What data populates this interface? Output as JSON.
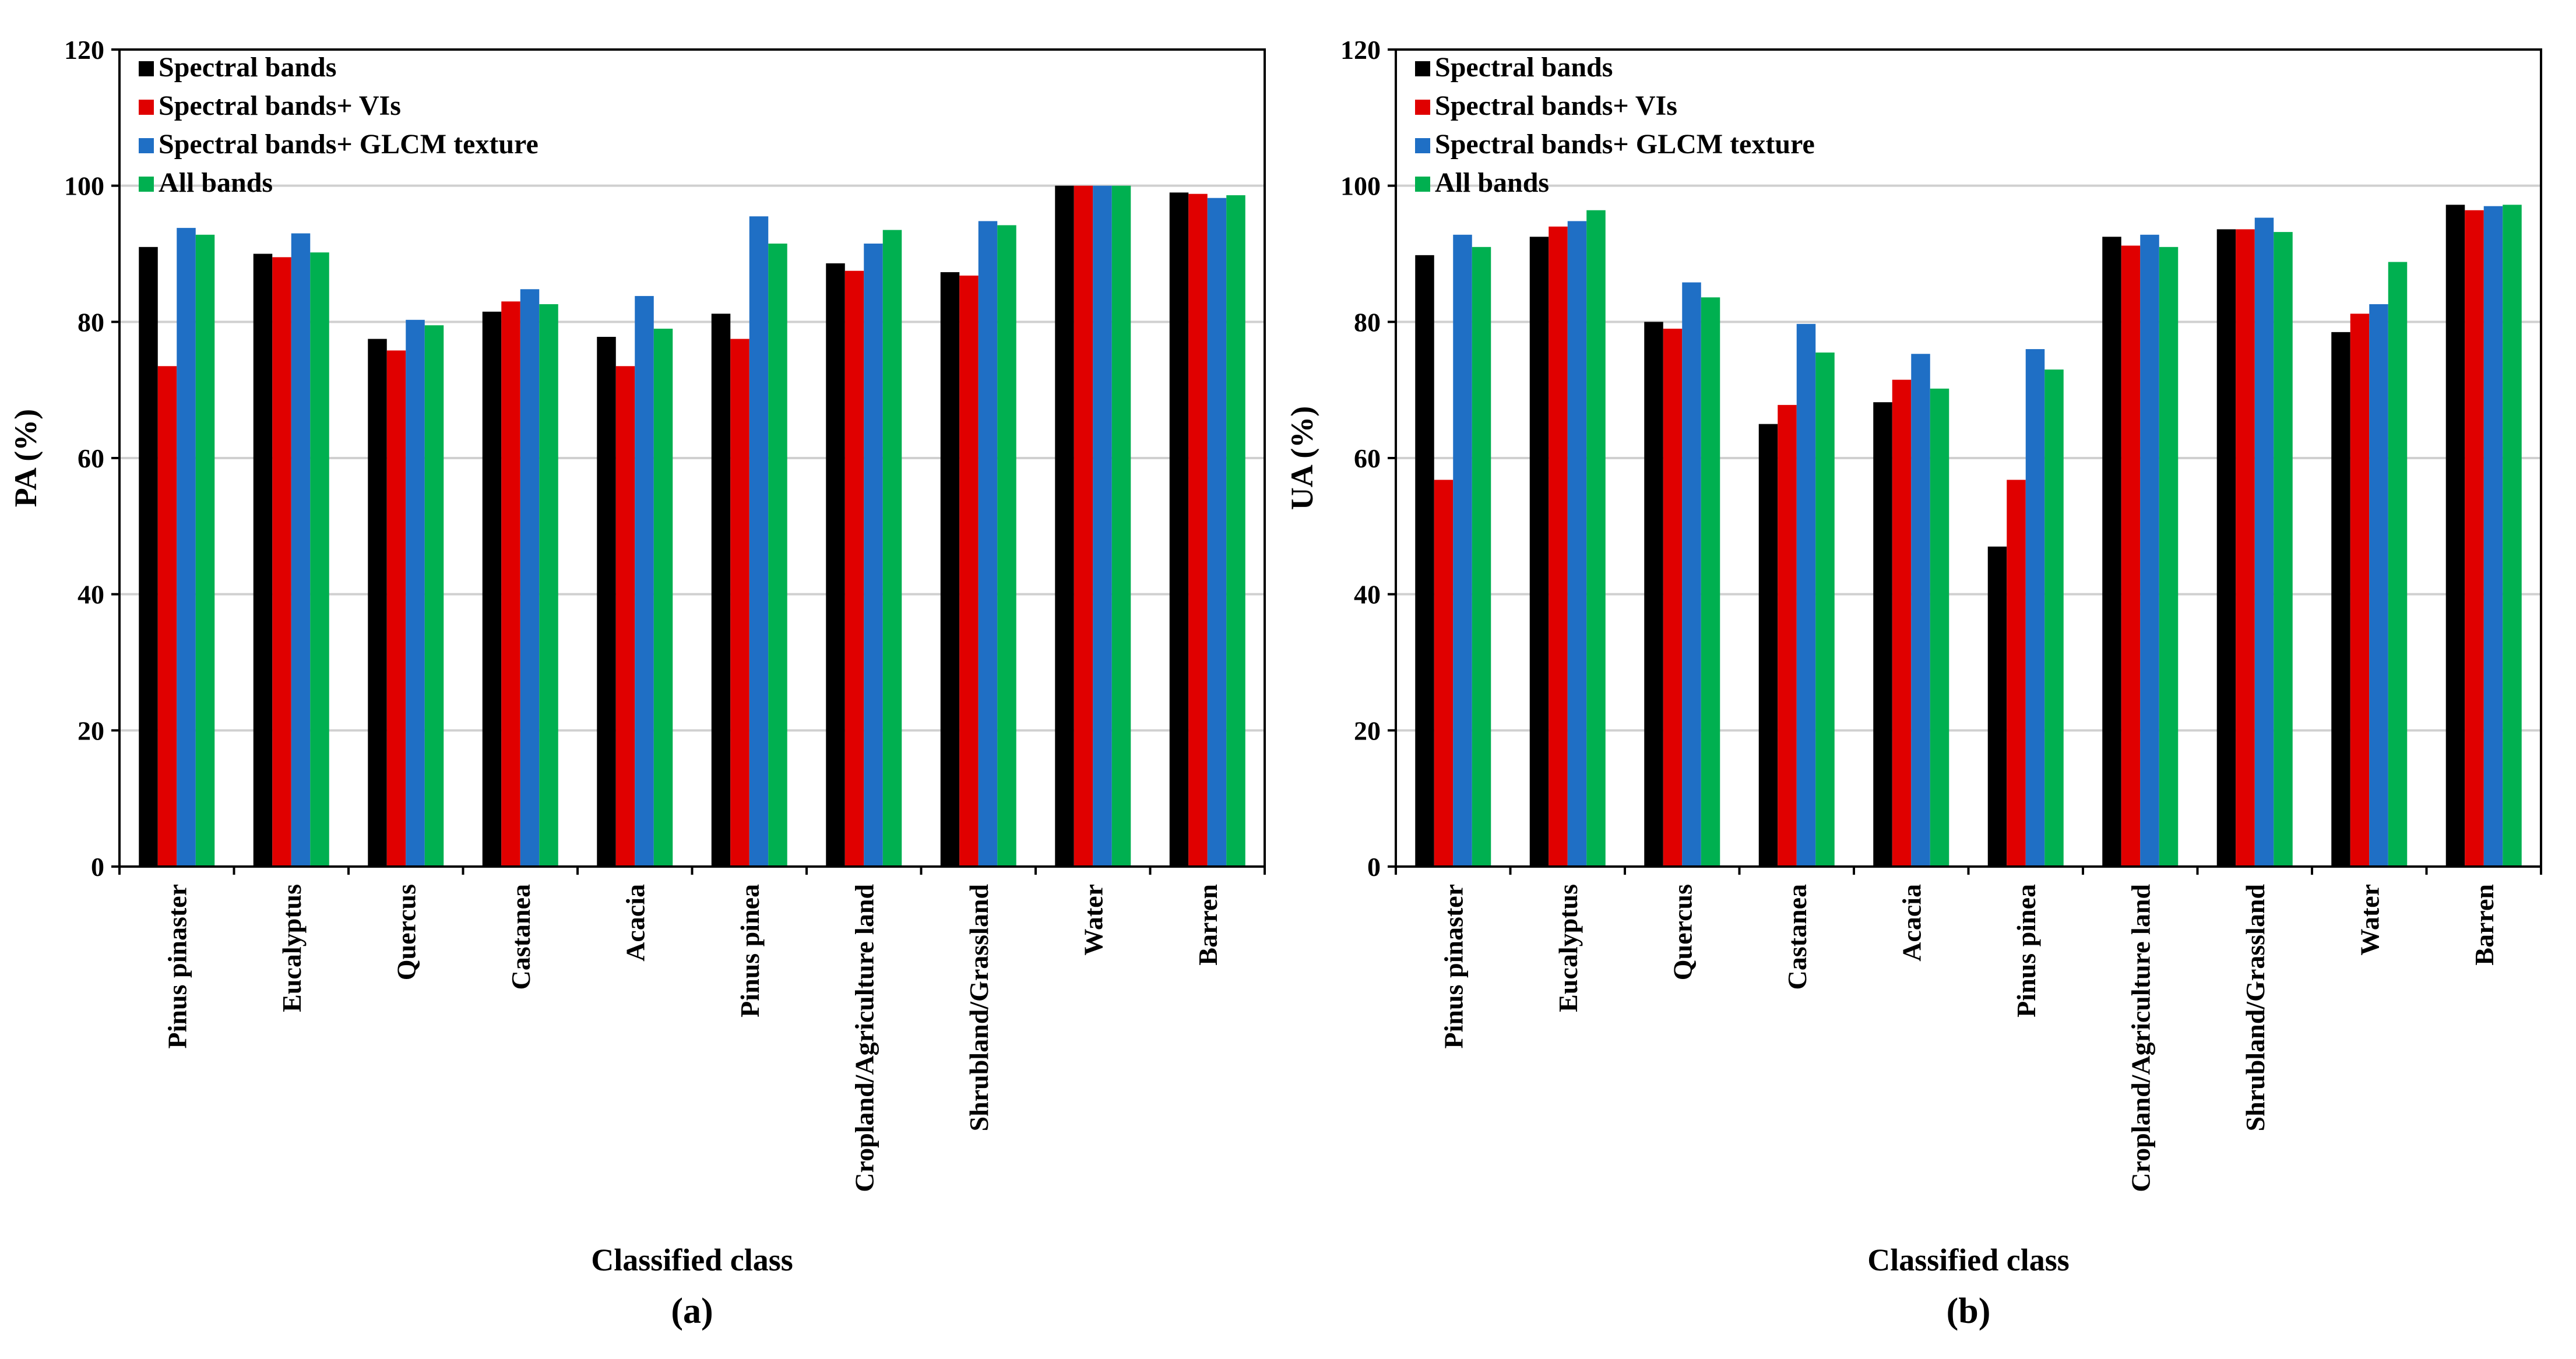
{
  "colors": {
    "spectral": "#000000",
    "vis": "#e00000",
    "glcm": "#1f6fc5",
    "all": "#00b050",
    "grid": "#d0d0d0",
    "frame": "#000000"
  },
  "chart_data": [
    {
      "type": "bar",
      "panel_label": "(a)",
      "xlabel": "Classified class",
      "ylabel": "PA (%)",
      "ylim": [
        0,
        120
      ],
      "yticks": [
        0,
        20,
        40,
        60,
        80,
        100,
        120
      ],
      "grid": true,
      "legend_position": "top-left",
      "categories": [
        "Pinus pinaster",
        "Eucalyptus",
        "Quercus",
        "Castanea",
        "Acacia",
        "Pinus pinea",
        "Cropland/Agriculture land",
        "Shrubland/Grassland",
        "Water",
        "Barren"
      ],
      "series": [
        {
          "name": "Spectral bands",
          "color_key": "spectral",
          "values": [
            91,
            90,
            77.5,
            81.5,
            77.8,
            81.2,
            88.6,
            87.3,
            100,
            99
          ]
        },
        {
          "name": "Spectral bands+ VIs",
          "color_key": "vis",
          "values": [
            73.5,
            89.5,
            75.8,
            83,
            73.5,
            77.5,
            87.5,
            86.8,
            100,
            98.8
          ]
        },
        {
          "name": "Spectral bands+ GLCM texture",
          "color_key": "glcm",
          "values": [
            93.8,
            93,
            80.3,
            84.8,
            83.8,
            95.5,
            91.5,
            94.8,
            100,
            98.2
          ]
        },
        {
          "name": "All bands",
          "color_key": "all",
          "values": [
            92.8,
            90.2,
            79.5,
            82.6,
            79,
            91.5,
            93.5,
            94.2,
            100,
            98.6
          ]
        }
      ]
    },
    {
      "type": "bar",
      "panel_label": "(b)",
      "xlabel": "Classified class",
      "ylabel": "UA (%)",
      "ylim": [
        0,
        120
      ],
      "yticks": [
        0,
        20,
        40,
        60,
        80,
        100,
        120
      ],
      "grid": true,
      "legend_position": "top-left",
      "categories": [
        "Pinus pinaster",
        "Eucalyptus",
        "Quercus",
        "Castanea",
        "Acacia",
        "Pinus pinea",
        "Cropland/Agriculture land",
        "Shrubland/Grassland",
        "Water",
        "Barren"
      ],
      "series": [
        {
          "name": "Spectral bands",
          "color_key": "spectral",
          "values": [
            89.8,
            92.5,
            80,
            65,
            68.2,
            47,
            92.5,
            93.6,
            78.5,
            97.2
          ]
        },
        {
          "name": "Spectral bands+ VIs",
          "color_key": "vis",
          "values": [
            56.8,
            94,
            79,
            67.8,
            71.5,
            56.8,
            91.2,
            93.6,
            81.2,
            96.4
          ]
        },
        {
          "name": "Spectral bands+ GLCM texture",
          "color_key": "glcm",
          "values": [
            92.8,
            94.8,
            85.8,
            79.7,
            75.3,
            76,
            92.8,
            95.3,
            82.6,
            97
          ]
        },
        {
          "name": "All bands",
          "color_key": "all",
          "values": [
            91,
            96.4,
            83.6,
            75.5,
            70.2,
            73,
            91,
            93.2,
            88.8,
            97.2
          ]
        }
      ]
    }
  ]
}
